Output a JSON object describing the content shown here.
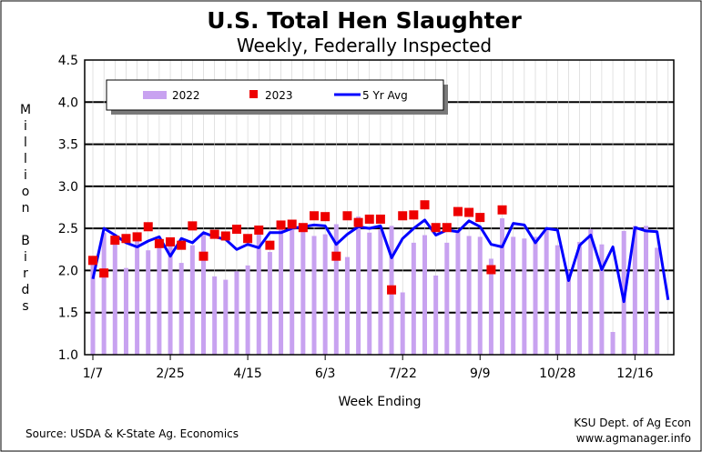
{
  "chart_data": {
    "type": "bar",
    "title": "U.S. Total Hen Slaughter",
    "subtitle": "Weekly, Federally Inspected",
    "xlabel": "Week Ending",
    "ylabel": "Million Birds",
    "ylim": [
      1.0,
      4.5
    ],
    "yticks": [
      "1.0",
      "1.5",
      "2.0",
      "2.5",
      "3.0",
      "3.5",
      "4.0",
      "4.5"
    ],
    "x_tick_labels": [
      {
        "week": 1,
        "label": "1/7"
      },
      {
        "week": 8,
        "label": "2/25"
      },
      {
        "week": 15,
        "label": "4/15"
      },
      {
        "week": 22,
        "label": "6/3"
      },
      {
        "week": 29,
        "label": "7/22"
      },
      {
        "week": 36,
        "label": "9/9"
      },
      {
        "week": 43,
        "label": "10/28"
      },
      {
        "week": 50,
        "label": "12/16"
      }
    ],
    "grid": true,
    "legend_position": "top-left",
    "series": [
      {
        "name": "2022",
        "kind": "bar",
        "color": "#c8a2f0",
        "values": [
          2.13,
          2.45,
          2.36,
          2.03,
          2.38,
          2.24,
          2.33,
          2.37,
          2.09,
          2.3,
          2.45,
          1.93,
          1.89,
          1.99,
          2.06,
          2.43,
          2.22,
          2.52,
          2.48,
          2.47,
          2.41,
          2.43,
          2.55,
          2.16,
          2.64,
          2.45,
          2.49,
          2.53,
          1.74,
          2.33,
          2.42,
          1.94,
          2.33,
          2.47,
          2.41,
          2.4,
          2.14,
          2.62,
          2.4,
          2.38,
          2.4,
          2.48,
          2.3,
          2.0,
          2.34,
          2.49,
          2.31,
          1.27,
          2.47,
          2.53,
          2.53,
          2.27
        ]
      },
      {
        "name": "2023",
        "kind": "marker",
        "color": "#ee0000",
        "values": [
          2.12,
          1.97,
          2.36,
          2.38,
          2.4,
          2.52,
          2.32,
          2.34,
          2.3,
          2.53,
          2.17,
          2.43,
          2.41,
          2.49,
          2.38,
          2.48,
          2.3,
          2.54,
          2.55,
          2.51,
          2.65,
          2.64,
          2.17,
          2.65,
          2.57,
          2.61,
          2.61,
          1.77,
          2.65,
          2.66,
          2.78,
          2.51,
          2.51,
          2.7,
          2.69,
          2.63,
          2.01,
          2.72
        ]
      },
      {
        "name": "5 Yr Avg",
        "kind": "line",
        "color": "#0000ff",
        "values": [
          1.9,
          2.5,
          2.42,
          2.33,
          2.28,
          2.35,
          2.4,
          2.17,
          2.38,
          2.33,
          2.45,
          2.4,
          2.37,
          2.25,
          2.31,
          2.27,
          2.45,
          2.45,
          2.5,
          2.52,
          2.54,
          2.53,
          2.31,
          2.43,
          2.52,
          2.5,
          2.53,
          2.15,
          2.38,
          2.5,
          2.6,
          2.42,
          2.48,
          2.46,
          2.59,
          2.52,
          2.31,
          2.28,
          2.56,
          2.54,
          2.33,
          2.5,
          2.48,
          1.88,
          2.3,
          2.42,
          2.01,
          2.28,
          1.63,
          2.51,
          2.47,
          2.46,
          1.65
        ]
      }
    ]
  },
  "footer": {
    "source": "Source:  USDA & K-State Ag. Economics",
    "credit_line1": "KSU Dept. of Ag Econ",
    "credit_line2": "www.agmanager.info"
  }
}
